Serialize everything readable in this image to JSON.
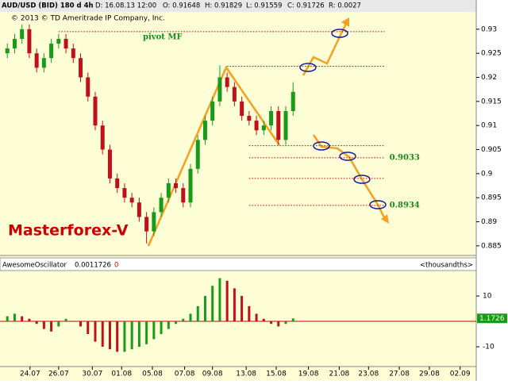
{
  "chart_data": [
    {
      "type": "candlestick",
      "title": "AUD/USD (BID) 180 d 4h",
      "info": [
        "D: 16.08.13 12:00",
        "O: 0.91648",
        "H: 0.91829",
        "L: 0.91559",
        "C: 0.91726",
        "R: 0.0027"
      ],
      "copyright": "© 2013 © TD Ameritrade IP Company, Inc.",
      "watermark": "Masterforex-V",
      "x": [
        0,
        1,
        2,
        3,
        4,
        5,
        6,
        7,
        8,
        9,
        10,
        11,
        12,
        13,
        14,
        15,
        16,
        17,
        18,
        19,
        20,
        21,
        22,
        23,
        24,
        25,
        26,
        27,
        28,
        29,
        30,
        31,
        32,
        33,
        34,
        35,
        36,
        37,
        38,
        39
      ],
      "open": [
        0.925,
        0.926,
        0.928,
        0.93,
        0.925,
        0.922,
        0.924,
        0.927,
        0.928,
        0.926,
        0.924,
        0.92,
        0.916,
        0.91,
        0.905,
        0.899,
        0.897,
        0.895,
        0.894,
        0.891,
        0.888,
        0.892,
        0.895,
        0.898,
        0.897,
        0.894,
        0.901,
        0.907,
        0.911,
        0.915,
        0.92,
        0.918,
        0.915,
        0.912,
        0.911,
        0.909,
        0.91,
        0.913,
        0.907,
        0.913
      ],
      "high": [
        0.927,
        0.929,
        0.931,
        0.931,
        0.926,
        0.925,
        0.928,
        0.929,
        0.929,
        0.927,
        0.925,
        0.921,
        0.917,
        0.911,
        0.906,
        0.9,
        0.898,
        0.896,
        0.895,
        0.892,
        0.893,
        0.896,
        0.899,
        0.899,
        0.898,
        0.902,
        0.908,
        0.912,
        0.916,
        0.9225,
        0.921,
        0.919,
        0.916,
        0.913,
        0.912,
        0.911,
        0.914,
        0.914,
        0.914,
        0.919
      ],
      "low": [
        0.924,
        0.925,
        0.927,
        0.924,
        0.921,
        0.921,
        0.923,
        0.926,
        0.925,
        0.923,
        0.919,
        0.915,
        0.909,
        0.904,
        0.898,
        0.896,
        0.894,
        0.893,
        0.89,
        0.8855,
        0.887,
        0.891,
        0.894,
        0.896,
        0.893,
        0.893,
        0.9,
        0.906,
        0.91,
        0.914,
        0.917,
        0.914,
        0.911,
        0.91,
        0.908,
        0.908,
        0.909,
        0.906,
        0.906,
        0.912
      ],
      "close": [
        0.926,
        0.928,
        0.93,
        0.925,
        0.922,
        0.924,
        0.927,
        0.928,
        0.926,
        0.924,
        0.92,
        0.916,
        0.91,
        0.905,
        0.899,
        0.897,
        0.895,
        0.894,
        0.891,
        0.888,
        0.892,
        0.895,
        0.898,
        0.897,
        0.894,
        0.901,
        0.907,
        0.911,
        0.915,
        0.92,
        0.918,
        0.915,
        0.912,
        0.911,
        0.909,
        0.91,
        0.913,
        0.907,
        0.913,
        0.917
      ],
      "up_color": "#1a9a1a",
      "down_color": "#c0101a",
      "xlim": [
        -1,
        64
      ],
      "ylim": [
        0.883,
        0.9336
      ],
      "yticks": [
        0.93,
        0.925,
        0.92,
        0.915,
        0.91,
        0.905,
        0.9,
        0.895,
        0.89,
        0.885
      ],
      "xticks": [
        {
          "value": 3.1,
          "label": "24.07"
        },
        {
          "value": 7.0,
          "label": "26.07"
        },
        {
          "value": 11.6,
          "label": "30.07"
        },
        {
          "value": 15.6,
          "label": "01.08"
        },
        {
          "value": 19.8,
          "label": "05.08"
        },
        {
          "value": 24.2,
          "label": "07.08"
        },
        {
          "value": 28.0,
          "label": "09.08"
        },
        {
          "value": 32.6,
          "label": "13.08"
        },
        {
          "value": 36.7,
          "label": "15.08"
        },
        {
          "value": 41.1,
          "label": "19.08"
        },
        {
          "value": 45.3,
          "label": "21.08"
        },
        {
          "value": 49.3,
          "label": "23.08"
        },
        {
          "value": 53.5,
          "label": "27.08"
        },
        {
          "value": 57.6,
          "label": "29.08"
        },
        {
          "value": 61.8,
          "label": "02.09"
        }
      ],
      "levels": [
        {
          "value": 0.9295,
          "from": 7,
          "to": 51.5,
          "label": "pivot MF"
        },
        {
          "value": 0.9223,
          "from": 30,
          "to": 51.5
        },
        {
          "value": 0.9058,
          "from": 33,
          "to": 51.5
        },
        {
          "value": 0.9033,
          "from": 33,
          "to": 51.5,
          "label": "0.9033"
        },
        {
          "value": 0.899,
          "from": 33,
          "to": 51.5
        },
        {
          "value": 0.8934,
          "from": 33,
          "to": 51.5,
          "label": "0.8934"
        }
      ],
      "level_color": "#1a8a1a"
    },
    {
      "type": "oscillator",
      "title": "AwesomeOscillator",
      "info": [
        "0.0011726",
        "0"
      ],
      "unit_label": "<thousandths>",
      "x": [
        0,
        1,
        2,
        3,
        4,
        5,
        6,
        7,
        8,
        9,
        10,
        11,
        12,
        13,
        14,
        15,
        16,
        17,
        18,
        19,
        20,
        21,
        22,
        23,
        24,
        25,
        26,
        27,
        28,
        29,
        30,
        31,
        32,
        33,
        34,
        35,
        36,
        37,
        38,
        39
      ],
      "values": [
        2,
        3,
        2,
        1,
        -1,
        -3,
        -4,
        -2,
        1,
        0,
        -2,
        -5,
        -8,
        -10,
        -11,
        -12,
        -12,
        -11,
        -10,
        -9,
        -7,
        -5,
        -3,
        -1,
        1,
        3,
        6,
        10,
        14,
        17,
        16,
        13,
        10,
        6,
        3,
        1,
        -1,
        -2,
        -1,
        1.1726
      ],
      "up_color": "#1a9a1a",
      "down_color": "#c0101a",
      "xlim": [
        -1,
        64
      ],
      "ylim": [
        -17.8,
        19.7
      ],
      "yticks": [
        10,
        -10
      ]
    }
  ]
}
